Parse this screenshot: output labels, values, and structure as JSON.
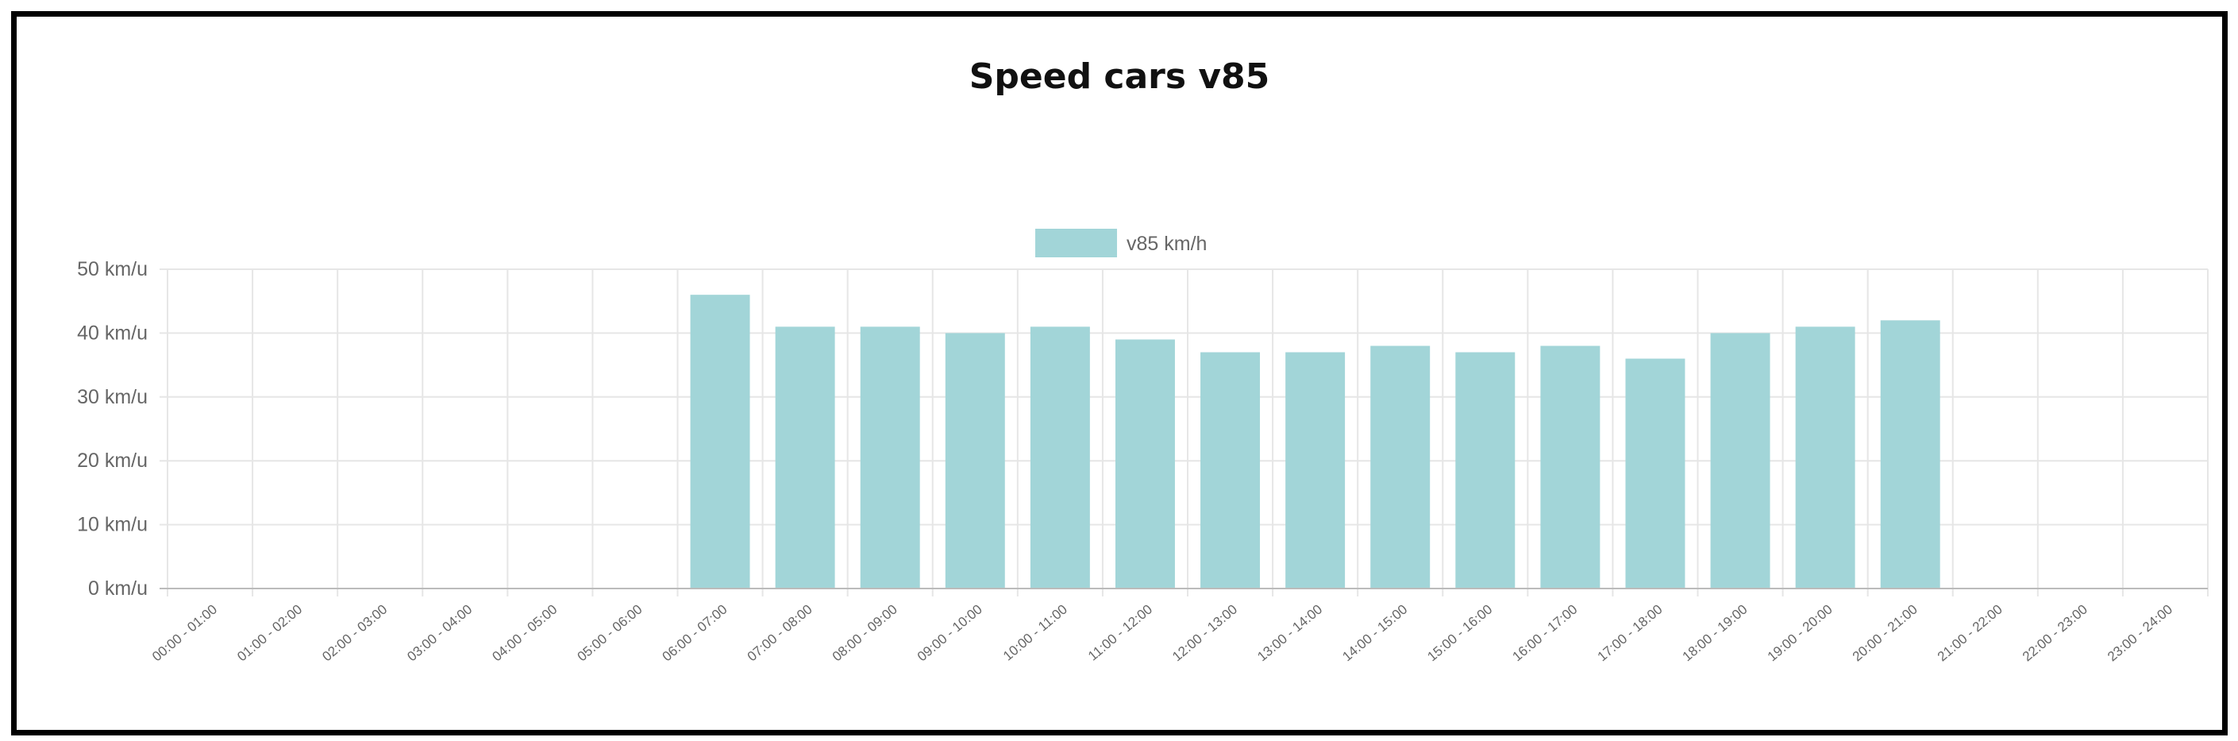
{
  "chart_data": {
    "type": "bar",
    "title": "Speed cars v85",
    "xlabel": "",
    "ylabel": "",
    "ylim": [
      0,
      50
    ],
    "y_ticks": [
      {
        "value": 0,
        "label": "0 km/u"
      },
      {
        "value": 10,
        "label": "10 km/u"
      },
      {
        "value": 20,
        "label": "20 km/u"
      },
      {
        "value": 30,
        "label": "30 km/u"
      },
      {
        "value": 40,
        "label": "40 km/u"
      },
      {
        "value": 50,
        "label": "50 km/u"
      }
    ],
    "grid": true,
    "legend_position": "top-center",
    "categories": [
      "00:00 - 01:00",
      "01:00 - 02:00",
      "02:00 - 03:00",
      "03:00 - 04:00",
      "04:00 - 05:00",
      "05:00 - 06:00",
      "06:00 - 07:00",
      "07:00 - 08:00",
      "08:00 - 09:00",
      "09:00 - 10:00",
      "10:00 - 11:00",
      "11:00 - 12:00",
      "12:00 - 13:00",
      "13:00 - 14:00",
      "14:00 - 15:00",
      "15:00 - 16:00",
      "16:00 - 17:00",
      "17:00 - 18:00",
      "18:00 - 19:00",
      "19:00 - 20:00",
      "20:00 - 21:00",
      "21:00 - 22:00",
      "22:00 - 23:00",
      "23:00 - 24:00"
    ],
    "series": [
      {
        "name": "v85 km/h",
        "color": "#a2d5d8",
        "values": [
          0,
          0,
          0,
          0,
          0,
          0,
          46,
          41,
          41,
          40,
          41,
          39,
          37,
          37,
          38,
          37,
          38,
          36,
          40,
          41,
          42,
          0,
          0,
          0
        ]
      }
    ]
  }
}
